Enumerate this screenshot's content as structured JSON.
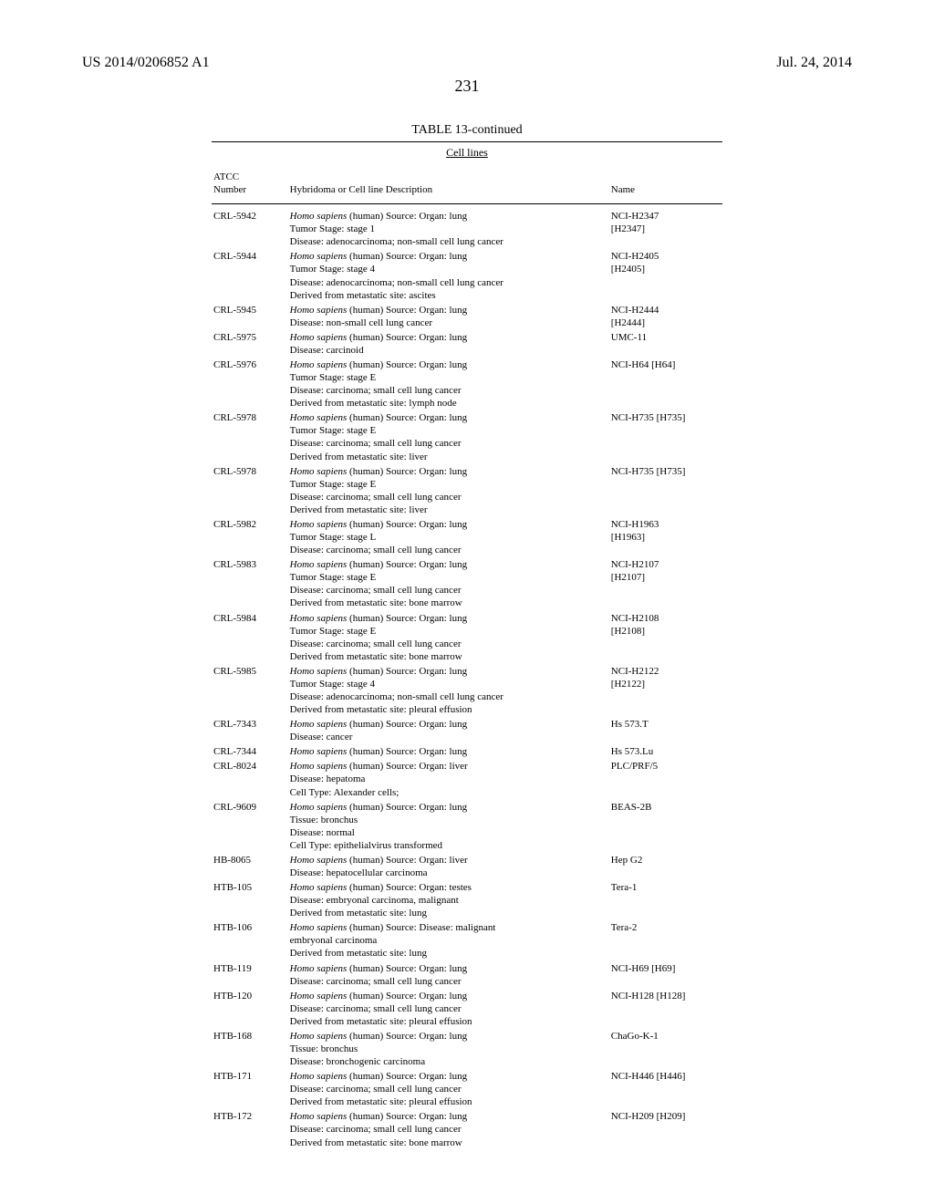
{
  "header": {
    "left": "US 2014/0206852 A1",
    "right": "Jul. 24, 2014"
  },
  "pageNumber": "231",
  "table": {
    "title": "TABLE 13-continued",
    "subtitle": "Cell lines",
    "columns": {
      "atcc_l1": "ATCC",
      "atcc_l2": "Number",
      "desc": "Hybridoma or Cell line Description",
      "name": "Name"
    },
    "rows": [
      {
        "atcc": "CRL-5942",
        "desc": [
          {
            "italic": "Homo sapiens",
            "rest": " (human) Source: Organ: lung"
          },
          {
            "rest": "Tumor Stage: stage 1"
          },
          {
            "rest": "Disease: adenocarcinoma; non-small cell lung cancer"
          }
        ],
        "name": [
          "NCI-H2347",
          "[H2347]"
        ]
      },
      {
        "atcc": "CRL-5944",
        "desc": [
          {
            "italic": "Homo sapiens",
            "rest": " (human) Source: Organ: lung"
          },
          {
            "rest": "Tumor Stage: stage 4"
          },
          {
            "rest": "Disease: adenocarcinoma; non-small cell lung cancer"
          },
          {
            "rest": "Derived from metastatic site: ascites"
          }
        ],
        "name": [
          "NCI-H2405",
          "[H2405]"
        ]
      },
      {
        "atcc": "CRL-5945",
        "desc": [
          {
            "italic": "Homo sapiens",
            "rest": " (human) Source: Organ: lung"
          },
          {
            "rest": "Disease: non-small cell lung cancer"
          }
        ],
        "name": [
          "NCI-H2444",
          "[H2444]"
        ]
      },
      {
        "atcc": "CRL-5975",
        "desc": [
          {
            "italic": "Homo sapiens",
            "rest": " (human) Source: Organ: lung"
          },
          {
            "rest": "Disease: carcinoid"
          }
        ],
        "name": [
          "UMC-11"
        ]
      },
      {
        "atcc": "CRL-5976",
        "desc": [
          {
            "italic": "Homo sapiens",
            "rest": " (human) Source: Organ: lung"
          },
          {
            "rest": "Tumor Stage: stage E"
          },
          {
            "rest": "Disease: carcinoma; small cell lung cancer"
          },
          {
            "rest": "Derived from metastatic site: lymph node"
          }
        ],
        "name": [
          "NCI-H64 [H64]"
        ]
      },
      {
        "atcc": "CRL-5978",
        "desc": [
          {
            "italic": "Homo sapiens",
            "rest": " (human) Source: Organ: lung"
          },
          {
            "rest": "Tumor Stage: stage E"
          },
          {
            "rest": "Disease: carcinoma; small cell lung cancer"
          },
          {
            "rest": "Derived from metastatic site: liver"
          }
        ],
        "name": [
          "NCI-H735 [H735]"
        ]
      },
      {
        "atcc": "CRL-5978",
        "desc": [
          {
            "italic": "Homo sapiens",
            "rest": " (human) Source: Organ: lung"
          },
          {
            "rest": "Tumor Stage: stage E"
          },
          {
            "rest": "Disease: carcinoma; small cell lung cancer"
          },
          {
            "rest": "Derived from metastatic site: liver"
          }
        ],
        "name": [
          "NCI-H735 [H735]"
        ]
      },
      {
        "atcc": "CRL-5982",
        "desc": [
          {
            "italic": "Homo sapiens",
            "rest": " (human) Source: Organ: lung"
          },
          {
            "rest": "Tumor Stage: stage L"
          },
          {
            "rest": "Disease: carcinoma; small cell lung cancer"
          }
        ],
        "name": [
          "NCI-H1963",
          "[H1963]"
        ]
      },
      {
        "atcc": "CRL-5983",
        "desc": [
          {
            "italic": "Homo sapiens",
            "rest": " (human) Source: Organ: lung"
          },
          {
            "rest": "Tumor Stage: stage E"
          },
          {
            "rest": "Disease: carcinoma; small cell lung cancer"
          },
          {
            "rest": "Derived from metastatic site: bone marrow"
          }
        ],
        "name": [
          "NCI-H2107",
          "[H2107]"
        ]
      },
      {
        "atcc": "CRL-5984",
        "desc": [
          {
            "italic": "Homo sapiens",
            "rest": " (human) Source: Organ: lung"
          },
          {
            "rest": "Tumor Stage: stage E"
          },
          {
            "rest": "Disease: carcinoma; small cell lung cancer"
          },
          {
            "rest": "Derived from metastatic site: bone marrow"
          }
        ],
        "name": [
          "NCI-H2108",
          "[H2108]"
        ]
      },
      {
        "atcc": "CRL-5985",
        "desc": [
          {
            "italic": "Homo sapiens",
            "rest": " (human) Source: Organ: lung"
          },
          {
            "rest": "Tumor Stage: stage 4"
          },
          {
            "rest": "Disease: adenocarcinoma; non-small cell lung cancer"
          },
          {
            "rest": "Derived from metastatic site: pleural effusion"
          }
        ],
        "name": [
          "NCI-H2122",
          "[H2122]"
        ]
      },
      {
        "atcc": "CRL-7343",
        "desc": [
          {
            "italic": "Homo sapiens",
            "rest": " (human) Source: Organ: lung"
          },
          {
            "rest": "Disease: cancer"
          }
        ],
        "name": [
          "Hs 573.T"
        ]
      },
      {
        "atcc": "CRL-7344",
        "desc": [
          {
            "italic": "Homo sapiens",
            "rest": " (human) Source: Organ: lung"
          }
        ],
        "name": [
          "Hs 573.Lu"
        ]
      },
      {
        "atcc": "CRL-8024",
        "desc": [
          {
            "italic": "Homo sapiens",
            "rest": " (human) Source: Organ: liver"
          },
          {
            "rest": "Disease: hepatoma"
          },
          {
            "rest": "Cell Type: Alexander cells;"
          }
        ],
        "name": [
          "PLC/PRF/5"
        ]
      },
      {
        "atcc": "CRL-9609",
        "desc": [
          {
            "italic": "Homo sapiens",
            "rest": " (human) Source: Organ: lung"
          },
          {
            "rest": "Tissue: bronchus"
          },
          {
            "rest": "Disease: normal"
          },
          {
            "rest": "Cell Type: epithelialvirus transformed"
          }
        ],
        "name": [
          "BEAS-2B"
        ]
      },
      {
        "atcc": "HB-8065",
        "desc": [
          {
            "italic": "Homo sapiens",
            "rest": " (human) Source: Organ: liver"
          },
          {
            "rest": "Disease: hepatocellular carcinoma"
          }
        ],
        "name": [
          "Hep G2"
        ]
      },
      {
        "atcc": "HTB-105",
        "desc": [
          {
            "italic": "Homo sapiens",
            "rest": " (human) Source: Organ: testes"
          },
          {
            "rest": "Disease: embryonal carcinoma, malignant"
          },
          {
            "rest": "Derived from metastatic site: lung"
          }
        ],
        "name": [
          "Tera-1"
        ]
      },
      {
        "atcc": "HTB-106",
        "desc": [
          {
            "italic": "Homo sapiens",
            "rest": " (human) Source: Disease: malignant"
          },
          {
            "rest": "embryonal carcinoma"
          },
          {
            "rest": "Derived from metastatic site: lung"
          }
        ],
        "name": [
          "Tera-2"
        ]
      },
      {
        "atcc": "HTB-119",
        "desc": [
          {
            "italic": "Homo sapiens",
            "rest": " (human) Source: Organ: lung"
          },
          {
            "rest": "Disease: carcinoma; small cell lung cancer"
          }
        ],
        "name": [
          "NCI-H69 [H69]"
        ]
      },
      {
        "atcc": "HTB-120",
        "desc": [
          {
            "italic": "Homo sapiens",
            "rest": " (human) Source: Organ: lung"
          },
          {
            "rest": "Disease: carcinoma; small cell lung cancer"
          },
          {
            "rest": "Derived from metastatic site: pleural effusion"
          }
        ],
        "name": [
          "NCI-H128 [H128]"
        ]
      },
      {
        "atcc": "HTB-168",
        "desc": [
          {
            "italic": "Homo sapiens",
            "rest": " (human) Source: Organ: lung"
          },
          {
            "rest": "Tissue: bronchus"
          },
          {
            "rest": "Disease: bronchogenic carcinoma"
          }
        ],
        "name": [
          "ChaGo-K-1"
        ]
      },
      {
        "atcc": "HTB-171",
        "desc": [
          {
            "italic": "Homo sapiens",
            "rest": " (human) Source: Organ: lung"
          },
          {
            "rest": "Disease: carcinoma; small cell lung cancer"
          },
          {
            "rest": "Derived from metastatic site: pleural effusion"
          }
        ],
        "name": [
          "NCI-H446 [H446]"
        ]
      },
      {
        "atcc": "HTB-172",
        "desc": [
          {
            "italic": "Homo sapiens",
            "rest": " (human) Source: Organ: lung"
          },
          {
            "rest": "Disease: carcinoma; small cell lung cancer"
          },
          {
            "rest": "Derived from metastatic site: bone marrow"
          }
        ],
        "name": [
          "NCI-H209 [H209]"
        ]
      }
    ]
  }
}
